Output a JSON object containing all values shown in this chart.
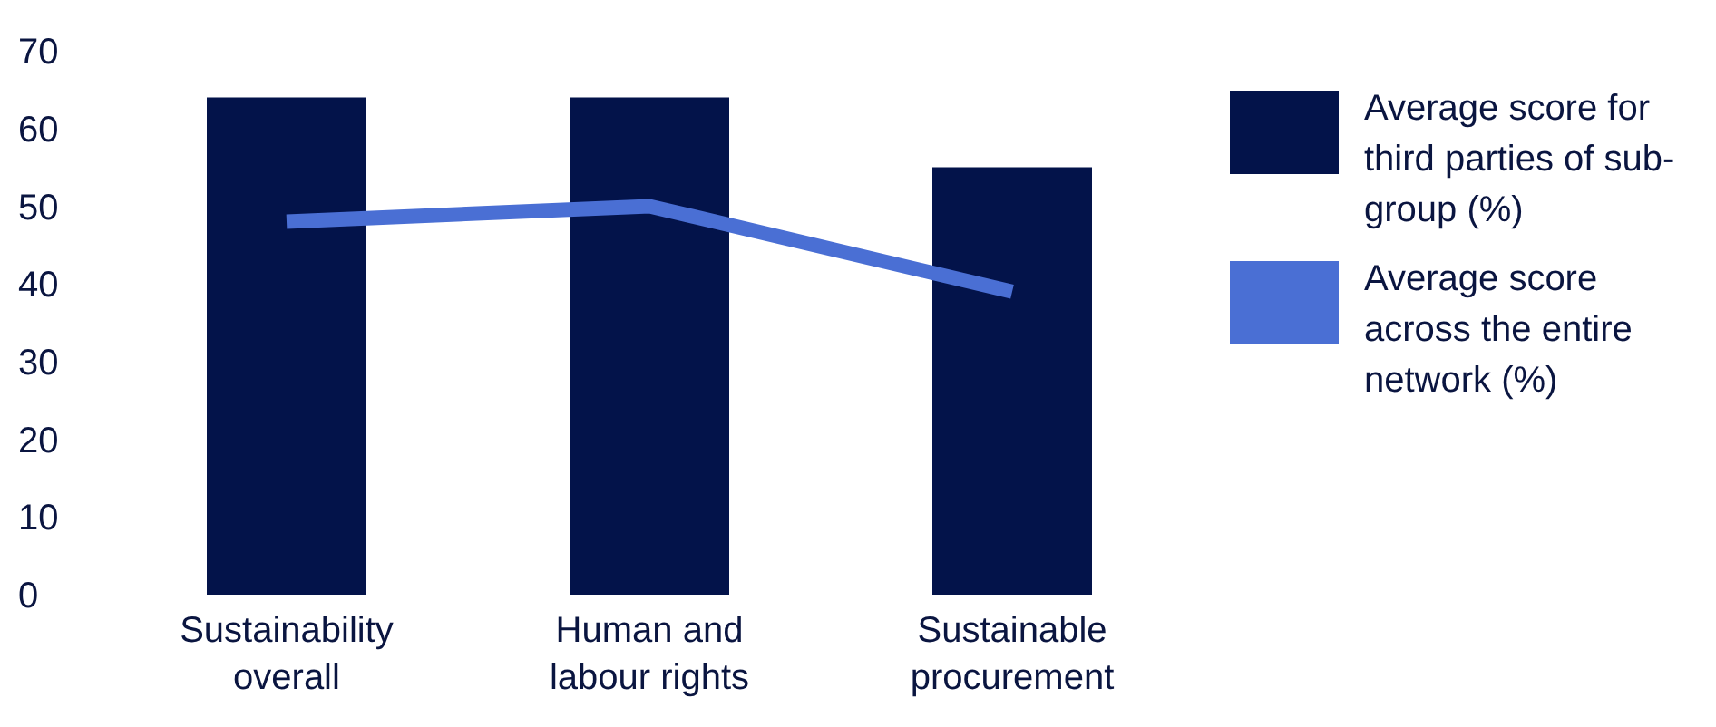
{
  "chart_data": {
    "type": "bar",
    "categories": [
      "Sustainability overall",
      "Human and labour rights",
      "Sustainable procurement"
    ],
    "series": [
      {
        "name": "Average score for third parties of sub-group (%)",
        "color": "#03134a",
        "values": [
          64,
          64,
          55
        ]
      },
      {
        "name": "Average score across the entire network (%)",
        "type": "line",
        "color": "#4a6fd4",
        "values": [
          48,
          50,
          39
        ]
      }
    ],
    "ylim": [
      0,
      70
    ],
    "yticks": [
      0,
      10,
      20,
      30,
      40,
      50,
      60,
      70
    ],
    "legend": "right"
  }
}
